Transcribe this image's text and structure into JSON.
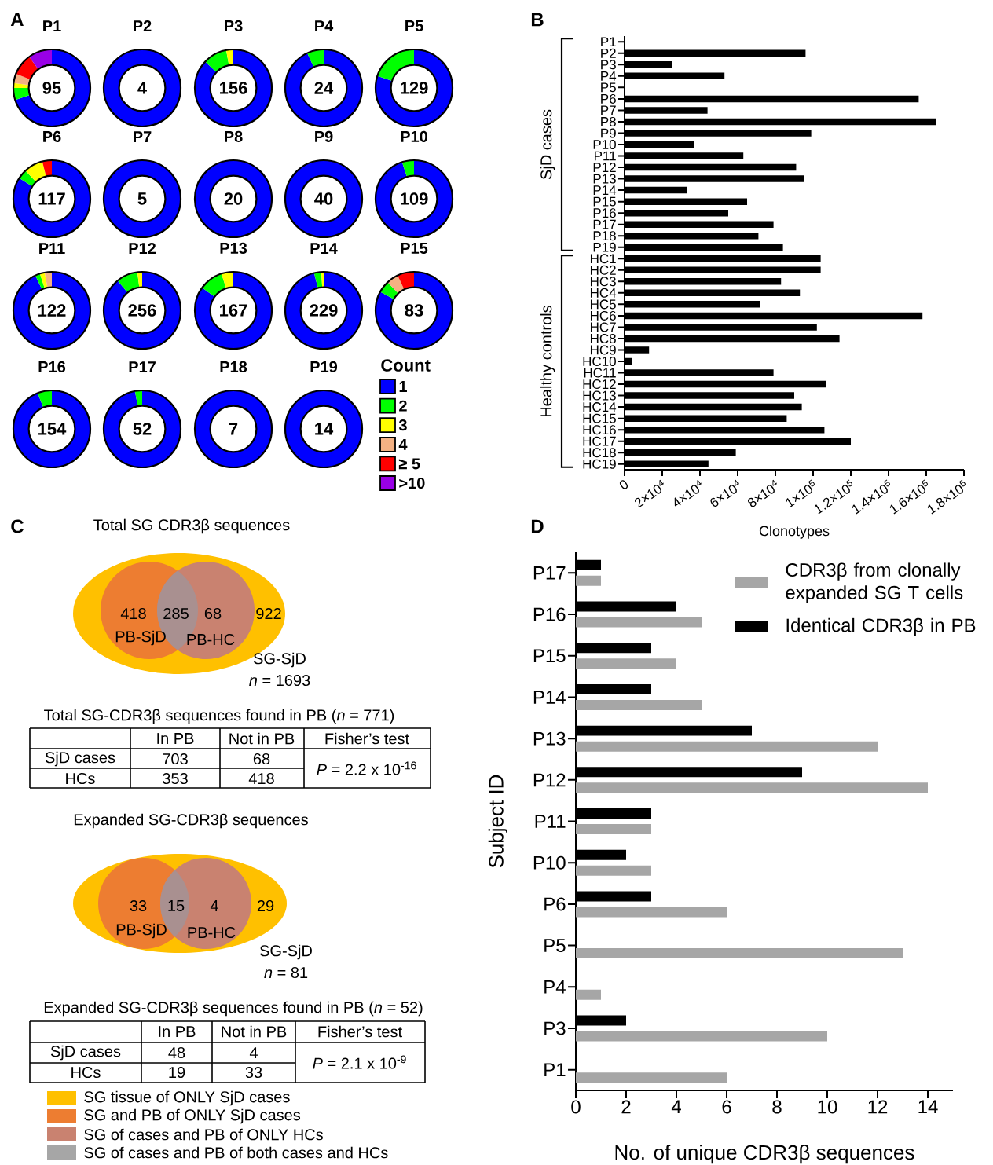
{
  "chart_data": [
    {
      "type": "donut",
      "title": "P1",
      "colors": [
        "#0000ff",
        "#00ff00",
        "#ffff00",
        "#f4b183",
        "#ff0000",
        "#9900e6"
      ],
      "values": [
        70,
        5,
        2,
        4,
        9,
        10
      ],
      "annotations": [
        "95",
        "A"
      ]
    },
    {
      "type": "donut",
      "title": "P2",
      "colors": [
        "#0000ff",
        "#00ff00",
        "#ffff00",
        "#f4b183",
        "#ff0000",
        "#9900e6"
      ],
      "values": [
        100,
        0,
        0,
        0,
        0,
        0
      ],
      "annotations": [
        "4"
      ]
    },
    {
      "type": "donut",
      "title": "P3",
      "colors": [
        "#0000ff",
        "#00ff00",
        "#ffff00",
        "#f4b183",
        "#ff0000",
        "#9900e6"
      ],
      "values": [
        87,
        10,
        3,
        0,
        0,
        0
      ],
      "annotations": [
        "156"
      ]
    },
    {
      "type": "donut",
      "title": "P4",
      "colors": [
        "#0000ff",
        "#00ff00",
        "#ffff00",
        "#f4b183",
        "#ff0000",
        "#9900e6"
      ],
      "values": [
        93,
        7,
        0,
        0,
        0,
        0
      ],
      "annotations": [
        "24"
      ]
    },
    {
      "type": "donut",
      "title": "P5",
      "colors": [
        "#0000ff",
        "#00ff00",
        "#ffff00",
        "#f4b183",
        "#ff0000",
        "#9900e6"
      ],
      "values": [
        80,
        20,
        0,
        0,
        0,
        0
      ],
      "annotations": [
        "129"
      ]
    },
    {
      "type": "donut",
      "title": "P6",
      "colors": [
        "#0000ff",
        "#00ff00",
        "#ffff00",
        "#f4b183",
        "#ff0000",
        "#9900e6"
      ],
      "values": [
        84,
        4,
        8,
        0,
        4,
        0
      ],
      "annotations": [
        "117"
      ]
    },
    {
      "type": "donut",
      "title": "P7",
      "colors": [
        "#0000ff",
        "#00ff00",
        "#ffff00",
        "#f4b183",
        "#ff0000",
        "#9900e6"
      ],
      "values": [
        100,
        0,
        0,
        0,
        0,
        0
      ],
      "annotations": [
        "5"
      ]
    },
    {
      "type": "donut",
      "title": "P8",
      "colors": [
        "#0000ff",
        "#00ff00",
        "#ffff00",
        "#f4b183",
        "#ff0000",
        "#9900e6"
      ],
      "values": [
        100,
        0,
        0,
        0,
        0,
        0
      ],
      "annotations": [
        "20"
      ]
    },
    {
      "type": "donut",
      "title": "P9",
      "colors": [
        "#0000ff",
        "#00ff00",
        "#ffff00",
        "#f4b183",
        "#ff0000",
        "#9900e6"
      ],
      "values": [
        100,
        0,
        0,
        0,
        0,
        0
      ],
      "annotations": [
        "40"
      ]
    },
    {
      "type": "donut",
      "title": "P10",
      "colors": [
        "#0000ff",
        "#00ff00",
        "#ffff00",
        "#f4b183",
        "#ff0000",
        "#9900e6"
      ],
      "values": [
        95,
        5,
        0,
        0,
        0,
        0
      ],
      "annotations": [
        "109"
      ]
    },
    {
      "type": "donut",
      "title": "P11",
      "colors": [
        "#0000ff",
        "#00ff00",
        "#ffff00",
        "#f4b183",
        "#ff0000",
        "#9900e6"
      ],
      "values": [
        93,
        2,
        2,
        3,
        0,
        0
      ],
      "annotations": [
        "122"
      ]
    },
    {
      "type": "donut",
      "title": "P12",
      "colors": [
        "#0000ff",
        "#00ff00",
        "#ffff00",
        "#f4b183",
        "#ff0000",
        "#9900e6"
      ],
      "values": [
        89,
        9,
        2,
        0,
        0,
        0
      ],
      "annotations": [
        "256"
      ]
    },
    {
      "type": "donut",
      "title": "P13",
      "colors": [
        "#0000ff",
        "#00ff00",
        "#ffff00",
        "#f4b183",
        "#ff0000",
        "#9900e6"
      ],
      "values": [
        85,
        10,
        5,
        0,
        0,
        0
      ],
      "annotations": [
        "167"
      ]
    },
    {
      "type": "donut",
      "title": "P14",
      "colors": [
        "#0000ff",
        "#00ff00",
        "#ffff00",
        "#f4b183",
        "#ff0000",
        "#9900e6"
      ],
      "values": [
        96,
        3,
        1,
        0,
        0,
        0
      ],
      "annotations": [
        "229"
      ]
    },
    {
      "type": "donut",
      "title": "P15",
      "colors": [
        "#0000ff",
        "#00ff00",
        "#ffff00",
        "#f4b183",
        "#ff0000",
        "#9900e6"
      ],
      "values": [
        83,
        5,
        0,
        5,
        7,
        0
      ],
      "annotations": [
        "83"
      ]
    },
    {
      "type": "donut",
      "title": "P16",
      "colors": [
        "#0000ff",
        "#00ff00",
        "#ffff00",
        "#f4b183",
        "#ff0000",
        "#9900e6"
      ],
      "values": [
        94,
        6,
        0,
        0,
        0,
        0
      ],
      "annotations": [
        "154"
      ]
    },
    {
      "type": "donut",
      "title": "P17",
      "colors": [
        "#0000ff",
        "#00ff00",
        "#ffff00",
        "#f4b183",
        "#ff0000",
        "#9900e6"
      ],
      "values": [
        97,
        3,
        0,
        0,
        0,
        0
      ],
      "annotations": [
        "52"
      ]
    },
    {
      "type": "donut",
      "title": "P18",
      "colors": [
        "#0000ff",
        "#00ff00",
        "#ffff00",
        "#f4b183",
        "#ff0000",
        "#9900e6"
      ],
      "values": [
        100,
        0,
        0,
        0,
        0,
        0
      ],
      "annotations": [
        "7"
      ]
    },
    {
      "type": "donut",
      "title": "P19",
      "categories": [
        "1",
        "2",
        "3",
        "4",
        "≥ 5",
        ">10"
      ],
      "colors": [
        "#0000ff",
        "#00ff00",
        "#ffff00",
        "#f4b183",
        "#ff0000",
        "#9900e6"
      ],
      "values": [
        100,
        0,
        0,
        0,
        0,
        0
      ],
      "annotations": [
        "14"
      ],
      "legend": "right",
      "legend_title": "Count"
    },
    {
      "type": "bar",
      "orientation": "horizontal",
      "xlabel": "Clonotypes",
      "color": "#000000",
      "categories": [
        "P1",
        "P2",
        "P3",
        "P4",
        "P5",
        "P6",
        "P7",
        "P8",
        "P9",
        "P10",
        "P11",
        "P12",
        "P13",
        "P14",
        "P15",
        "P16",
        "P17",
        "P18",
        "P19",
        "HC1",
        "HC2",
        "HC3",
        "HC4",
        "HC5",
        "HC6",
        "HC7",
        "HC8",
        "HC9",
        "HC10",
        "HC11",
        "HC12",
        "HC13",
        "HC14",
        "HC15",
        "HC16",
        "HC17",
        "HC18",
        "HC19"
      ],
      "values": [
        0,
        96000,
        25000,
        53000,
        0,
        156000,
        44000,
        165000,
        99000,
        37000,
        63000,
        91000,
        95000,
        33000,
        65000,
        55000,
        79000,
        71000,
        84000,
        104000,
        104000,
        83000,
        93000,
        72000,
        158000,
        102000,
        114000,
        13000,
        4000,
        79000,
        107000,
        90000,
        94000,
        86000,
        106000,
        120000,
        59000,
        44500
      ],
      "xlim": [
        0,
        180000
      ],
      "xticks": [
        0,
        {
          "value": 20000,
          "label": "2×10$^{4}$"
        },
        {
          "value": 40000,
          "label": "4×10$^{4}$"
        },
        {
          "value": 60000,
          "label": "6×10$^{4}$"
        },
        {
          "value": 80000,
          "label": "8×10$^{4}$"
        },
        {
          "value": 100000,
          "label": "1×10$^{5}$"
        },
        {
          "value": 120000,
          "label": "1.2×10$^{5}$"
        },
        {
          "value": 140000,
          "label": "1.4×10$^{5}$"
        },
        {
          "value": 160000,
          "label": "1.6×10$^{5}$"
        },
        {
          "value": 180000,
          "label": "1.8×10$^{5}$"
        }
      ],
      "annotations": [
        "B",
        "SjD cases",
        "Healthy controls"
      ]
    },
    {
      "type": "other",
      "title": "Total SG CDR3β sequences",
      "colors": [
        "#ffc000",
        "#ed7d31",
        "#c98270",
        "#a99090"
      ],
      "annotations": [
        "C",
        "418",
        "285",
        "68",
        "922",
        "PB-SjD",
        "PB-HC",
        "SG-SjD",
        "*n* = 1693"
      ]
    },
    {
      "type": "other",
      "title": "Total SG-CDR3β sequences found in PB (*n* = 771)",
      "annotations": [
        "In PB",
        "Not in PB",
        "Fisher’s test",
        "SjD cases",
        "703",
        "68",
        "*P* = 2.2 x 10$^{-16}$",
        "HCs",
        "353",
        "418"
      ]
    },
    {
      "type": "other",
      "title": "Expanded SG-CDR3β sequences",
      "colors": [
        "#ffc000",
        "#ed7d31",
        "#c98270",
        "#a99090"
      ],
      "annotations": [
        "33",
        "15",
        "4",
        "29",
        "PB-SjD",
        "PB-HC",
        "SG-SjD",
        "*n* = 81"
      ]
    },
    {
      "type": "other",
      "title": "Expanded SG-CDR3β sequences found in PB (*n* = 52)",
      "annotations": [
        "In PB",
        "Not in PB",
        "Fisher’s test",
        "SjD cases",
        "48",
        "4",
        "*P* = 2.1 x 10$^{-9}$",
        "HCs",
        "19",
        "33"
      ]
    },
    {
      "type": "other",
      "categories": [
        "SG tissue of ONLY SjD cases",
        "SG and PB of ONLY SjD cases",
        "SG of cases and PB of ONLY HCs",
        "SG of cases and PB of both cases and HCs"
      ],
      "colors": [
        "#ffc000",
        "#ed7d31",
        "#c98270",
        "#a6a6a6"
      ]
    },
    {
      "type": "bar",
      "orientation": "horizontal",
      "xlabel": "No. of unique CDR3β sequences",
      "ylabel": "Subject ID",
      "legend": "top right",
      "categories": [
        "P17",
        "P16",
        "P15",
        "P14",
        "P13",
        "P12",
        "P11",
        "P10",
        "P6",
        "P5",
        "P4",
        "P3",
        "P1"
      ],
      "series": [
        {
          "name": "CDR3β from clonally expanded SG T cells",
          "color": "#a6a6a6",
          "values": [
            1,
            5,
            4,
            5,
            12,
            14,
            3,
            3,
            6,
            13,
            1,
            10,
            6
          ]
        },
        {
          "name": "Identical CDR3β in PB",
          "color": "#000000",
          "values": [
            1,
            4,
            3,
            3,
            7,
            9,
            3,
            2,
            3,
            null,
            null,
            2,
            null
          ]
        }
      ],
      "xlim": [
        0,
        15
      ],
      "xticks": [
        0,
        2,
        4,
        6,
        8,
        10,
        12,
        14
      ],
      "annotations": [
        "D"
      ]
    }
  ]
}
